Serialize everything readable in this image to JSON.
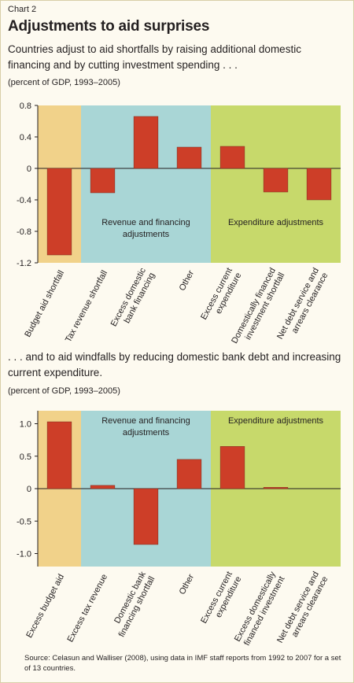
{
  "header": {
    "chart_label": "Chart 2",
    "title": "Adjustments to aid surprises"
  },
  "colors": {
    "bar": "#cd3e28",
    "bar_stroke": "#7a2a1c",
    "region_orange": "#f1d28a",
    "region_blue": "#a9d6d6",
    "region_green": "#c7d96b",
    "axis": "#231f20"
  },
  "source": "Source: Celasun and Walliser (2008), using data in IMF staff reports from 1992 to 2007 for a set of 13 countries.",
  "chart_data": [
    {
      "type": "bar",
      "subtitle": "Countries adjust to aid shortfalls by raising additional domestic financing and by cutting investment spending . . .",
      "units": "(percent of GDP, 1993–2005)",
      "categories": [
        "Budget aid shortfall",
        "Tax revenue shortfall",
        "Excess domestic bank financing",
        "Other",
        "Excess current expenditure",
        "Domestically financed investment shortfall",
        "Net debt service and arrears clearance"
      ],
      "category_lines": [
        [
          "Budget aid shortfall"
        ],
        [
          "Tax revenue shortfall"
        ],
        [
          "Excess domestic",
          "bank financing"
        ],
        [
          "Other"
        ],
        [
          "Excess current",
          "expenditure"
        ],
        [
          "Domestically financed",
          "investment shortfall"
        ],
        [
          "Net debt service and",
          "arrears clearance"
        ]
      ],
      "values": [
        -1.1,
        -0.31,
        0.66,
        0.27,
        0.28,
        -0.3,
        -0.4
      ],
      "ylim": [
        -1.2,
        0.8
      ],
      "yticks": [
        0.8,
        0.4,
        0,
        -0.4,
        -0.8,
        -1.2
      ],
      "ytick_labels": [
        "0.8",
        "0.4",
        "0",
        "-0.4",
        "-0.8",
        "-1.2"
      ],
      "regions": [
        {
          "from": 0,
          "to": 0,
          "color": "orange",
          "label_lines": []
        },
        {
          "from": 1,
          "to": 3,
          "color": "blue",
          "label_lines": [
            "Revenue and financing",
            "adjustments"
          ]
        },
        {
          "from": 4,
          "to": 6,
          "color": "green",
          "label_lines": [
            "Expenditure adjustments"
          ]
        }
      ],
      "region_label_pos": "middle"
    },
    {
      "type": "bar",
      "subtitle": ". . . and to aid windfalls by reducing domestic bank debt and increasing current expenditure.",
      "units": "(percent of GDP, 1993–2005)",
      "categories": [
        "Excess budget aid",
        "Excess tax revenue",
        "Domestic bank financing shortfall",
        "Other",
        "Excess current expenditure",
        "Excess domestically financed investment",
        "Net debt service and arrears clearance"
      ],
      "category_lines": [
        [
          "Excess budget aid"
        ],
        [
          "Excess tax revenue"
        ],
        [
          "Domestic bank",
          "financing shortfall"
        ],
        [
          "Other"
        ],
        [
          "Excess current",
          "expenditure"
        ],
        [
          "Excess domestically",
          "financed investment"
        ],
        [
          "Net debt service and",
          "arrears clearance"
        ]
      ],
      "values": [
        1.03,
        0.05,
        -0.86,
        0.45,
        0.65,
        0.02,
        0.0
      ],
      "ylim": [
        -1.2,
        1.2
      ],
      "yticks": [
        1.0,
        0.5,
        0,
        -0.5,
        -1.0
      ],
      "ytick_labels": [
        "1.0",
        "0.5",
        "0",
        "-0.5",
        "-1.0"
      ],
      "regions": [
        {
          "from": 0,
          "to": 0,
          "color": "orange",
          "label_lines": []
        },
        {
          "from": 1,
          "to": 3,
          "color": "blue",
          "label_lines": [
            "Revenue and financing",
            "adjustments"
          ]
        },
        {
          "from": 4,
          "to": 6,
          "color": "green",
          "label_lines": [
            "Expenditure adjustments"
          ]
        }
      ],
      "region_label_pos": "top"
    }
  ]
}
